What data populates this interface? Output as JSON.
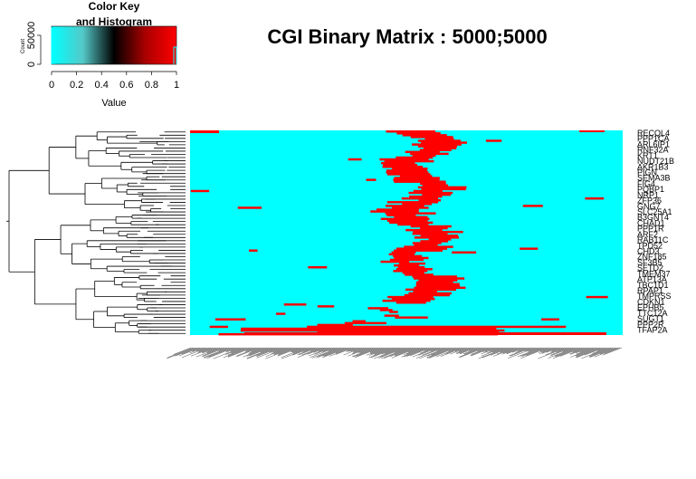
{
  "chart_data": {
    "type": "heatmap",
    "title": "CGI Binary Matrix : 5000;5000",
    "colors": {
      "low": "#00ffff",
      "mid": "#000000",
      "high": "#ff0000",
      "background": "#ffffff",
      "tree": "#000000"
    },
    "color_key": {
      "title_line1": "Color Key",
      "title_line2": "and Histogram",
      "xlabel": "Value",
      "ylabel": "Count",
      "x_ticks": [
        "0",
        "0.2",
        "0.4",
        "0.6",
        "0.8",
        "1"
      ],
      "y_ticks": [
        "0",
        "50000"
      ],
      "xlim": [
        0,
        1
      ]
    },
    "row_labels": [
      "RECQL4",
      "PPP1CA",
      "ARL6IP1",
      "RNF32A",
      "KRT1",
      "NUDT21B",
      "AKR1B3",
      "PIGN",
      "SEMA3B",
      "FIG4",
      "PQBP1",
      "NRP1",
      "ZFP36",
      "GNG7",
      "SLC25A1",
      "B3GNT4",
      "CHAD1",
      "PPP1R",
      "ARF2",
      "RAB11C",
      "TPD52",
      "CHD3",
      "ZNF185",
      "SF3B5",
      "SETD2",
      "TMEM37",
      "ATP13A",
      "TBC1D1",
      "RPAP1",
      "TMPRSS",
      "CDKN1",
      "EPHB5",
      "TTC12A",
      "SUGT1",
      "PPP2R",
      "TFAP2A"
    ],
    "matrix_values": "binary 0 / 1"
  }
}
